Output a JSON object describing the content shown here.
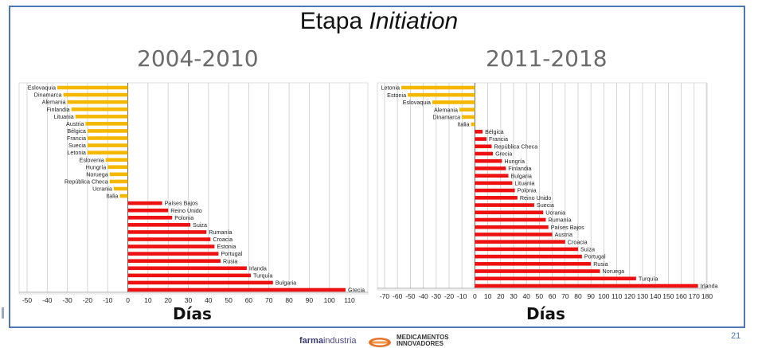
{
  "title": {
    "prefix": "Etapa",
    "emphasis": "Initiation"
  },
  "footer": {
    "brand_part1": "farma",
    "brand_part2": "industria",
    "logo_line1": "MEDICAMENTOS",
    "logo_line2": "INNOVADORES",
    "page_number": "21"
  },
  "colors": {
    "negative": "#f5b800",
    "positive": "#ee1111",
    "grid": "#cccccc",
    "frame": "#4f75b6"
  },
  "chart_data": [
    {
      "type": "bar",
      "orientation": "horizontal",
      "title": "2004-2010",
      "xlabel": "Días",
      "xlim": [
        -50,
        110
      ],
      "xticks": [
        -50,
        -40,
        -30,
        -20,
        -10,
        0,
        10,
        20,
        30,
        40,
        50,
        60,
        70,
        80,
        90,
        100,
        110
      ],
      "grid": true,
      "categories": [
        "Eslovaquia",
        "Dinamarca",
        "Alemania",
        "Finlandia",
        "Lituania",
        "Austria",
        "Bélgica",
        "Francia",
        "Suecia",
        "Letonia",
        "Eslovenia",
        "Hungría",
        "Noruega",
        "República Checa",
        "Ucrania",
        "Italia",
        "Países Bajos",
        "Reino Unido",
        "Polonia",
        "Suiza",
        "Rumanía",
        "Croacia",
        "Estonia",
        "Portugal",
        "Rusia",
        "Irlanda",
        "Turquía",
        "Bulgaria",
        "Grecia"
      ],
      "values": [
        -35,
        -32,
        -30,
        -28,
        -26,
        -21,
        -20,
        -20,
        -20,
        -20,
        -11,
        -10,
        -9,
        -9,
        -7,
        -4,
        17,
        20,
        22,
        31,
        39,
        41,
        43,
        45,
        46,
        59,
        61,
        72,
        108
      ]
    },
    {
      "type": "bar",
      "orientation": "horizontal",
      "title": "2011-2018",
      "xlabel": "Días",
      "xlim": [
        -70,
        180
      ],
      "xticks": [
        -70,
        -60,
        -50,
        -40,
        -30,
        -20,
        -10,
        0,
        10,
        20,
        30,
        40,
        50,
        60,
        70,
        80,
        90,
        100,
        110,
        120,
        130,
        140,
        150,
        160,
        170,
        180
      ],
      "grid": true,
      "categories": [
        "Letonia",
        "Estonia",
        "Eslovaquia",
        "Alemania",
        "Dinamarca",
        "Italia",
        "Bélgica",
        "Francia",
        "República Checa",
        "Grecia",
        "Hungría",
        "Finlandia",
        "Bulgaria",
        "Lituania",
        "Polonia",
        "Reino Unido",
        "Suecia",
        "Ucrania",
        "Rumanía",
        "Países Bajos",
        "Austria",
        "Croacia",
        "Suiza",
        "Portugal",
        "Rusia",
        "Noruega",
        "Turquía",
        "Irlanda"
      ],
      "values": [
        -57,
        -52,
        -33,
        -12,
        -10,
        -3,
        6,
        9,
        13,
        14,
        21,
        24,
        26,
        29,
        31,
        33,
        46,
        53,
        55,
        57,
        60,
        70,
        80,
        83,
        90,
        97,
        125,
        173
      ]
    }
  ]
}
